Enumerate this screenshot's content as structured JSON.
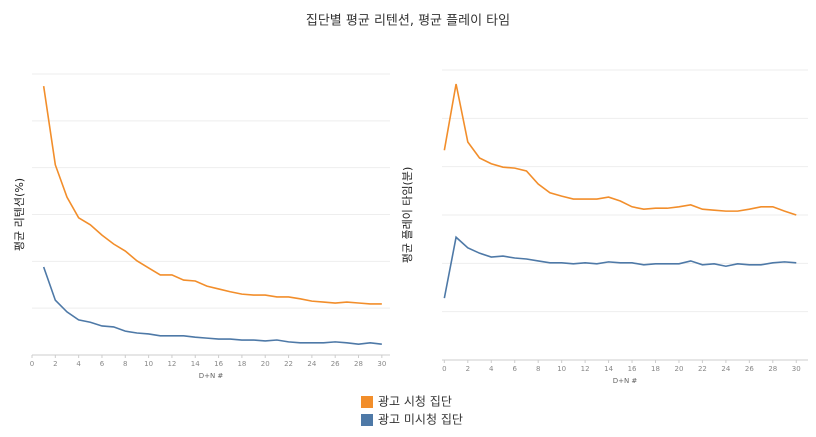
{
  "title": "집단별 평균 리텐션, 평균 플레이 타임",
  "chart_data": [
    {
      "type": "line",
      "xlabel": "D+N #",
      "ylabel": "평균 리텐션(%)",
      "x": [
        1,
        2,
        3,
        4,
        5,
        6,
        7,
        8,
        9,
        10,
        11,
        12,
        13,
        14,
        15,
        16,
        17,
        18,
        19,
        20,
        21,
        22,
        23,
        24,
        25,
        26,
        27,
        28,
        29,
        30
      ],
      "xlim": [
        0,
        30.7
      ],
      "xticks": [
        0,
        2,
        4,
        6,
        8,
        10,
        12,
        14,
        16,
        18,
        20,
        22,
        24,
        26,
        28,
        30
      ],
      "ylim": [
        0,
        60
      ],
      "grid": true,
      "series": [
        {
          "name": "광고 시청 집단",
          "color": "#f28e2b",
          "values": [
            57.4,
            40.6,
            33.7,
            29.3,
            27.8,
            25.6,
            23.7,
            22.2,
            20.1,
            18.6,
            17.1,
            17.1,
            16.0,
            15.8,
            14.7,
            14.1,
            13.5,
            13.0,
            12.8,
            12.8,
            12.4,
            12.4,
            12.0,
            11.5,
            11.3,
            11.1,
            11.3,
            11.1,
            10.9,
            10.9
          ]
        },
        {
          "name": "광고 미시청 집단",
          "color": "#4e79a7",
          "values": [
            18.8,
            11.7,
            9.2,
            7.5,
            7.0,
            6.2,
            6.0,
            5.1,
            4.7,
            4.5,
            4.1,
            4.1,
            4.1,
            3.8,
            3.6,
            3.4,
            3.4,
            3.2,
            3.2,
            3.0,
            3.2,
            2.8,
            2.6,
            2.6,
            2.6,
            2.8,
            2.6,
            2.3,
            2.6,
            2.3
          ]
        }
      ]
    },
    {
      "type": "line",
      "xlabel": "D+N #",
      "ylabel": "평균 플레이 타임(분)",
      "x": [
        0,
        1,
        2,
        3,
        4,
        5,
        6,
        7,
        8,
        9,
        10,
        11,
        12,
        13,
        14,
        15,
        16,
        17,
        18,
        19,
        20,
        21,
        22,
        23,
        24,
        25,
        26,
        27,
        28,
        29,
        30
      ],
      "xlim": [
        -0.2,
        31
      ],
      "xticks": [
        0,
        2,
        4,
        6,
        8,
        10,
        12,
        14,
        16,
        18,
        20,
        22,
        24,
        26,
        28,
        30
      ],
      "ylim": [
        0,
        60
      ],
      "grid": true,
      "series": [
        {
          "name": "광고 시청 집단",
          "color": "#f28e2b",
          "values": [
            43.4,
            57.1,
            45.1,
            41.8,
            40.6,
            39.9,
            39.7,
            39.1,
            36.4,
            34.6,
            33.9,
            33.3,
            33.3,
            33.3,
            33.7,
            32.9,
            31.7,
            31.2,
            31.4,
            31.4,
            31.7,
            32.1,
            31.2,
            31.0,
            30.8,
            30.8,
            31.2,
            31.7,
            31.7,
            30.8,
            30.0
          ]
        },
        {
          "name": "광고 미시청 집단",
          "color": "#4e79a7",
          "values": [
            12.8,
            25.4,
            23.2,
            22.1,
            21.3,
            21.5,
            21.1,
            20.9,
            20.5,
            20.1,
            20.1,
            19.9,
            20.1,
            19.9,
            20.3,
            20.1,
            20.1,
            19.7,
            19.9,
            19.9,
            19.9,
            20.5,
            19.7,
            19.9,
            19.4,
            19.9,
            19.7,
            19.7,
            20.1,
            20.3,
            20.1
          ]
        }
      ]
    }
  ]
}
